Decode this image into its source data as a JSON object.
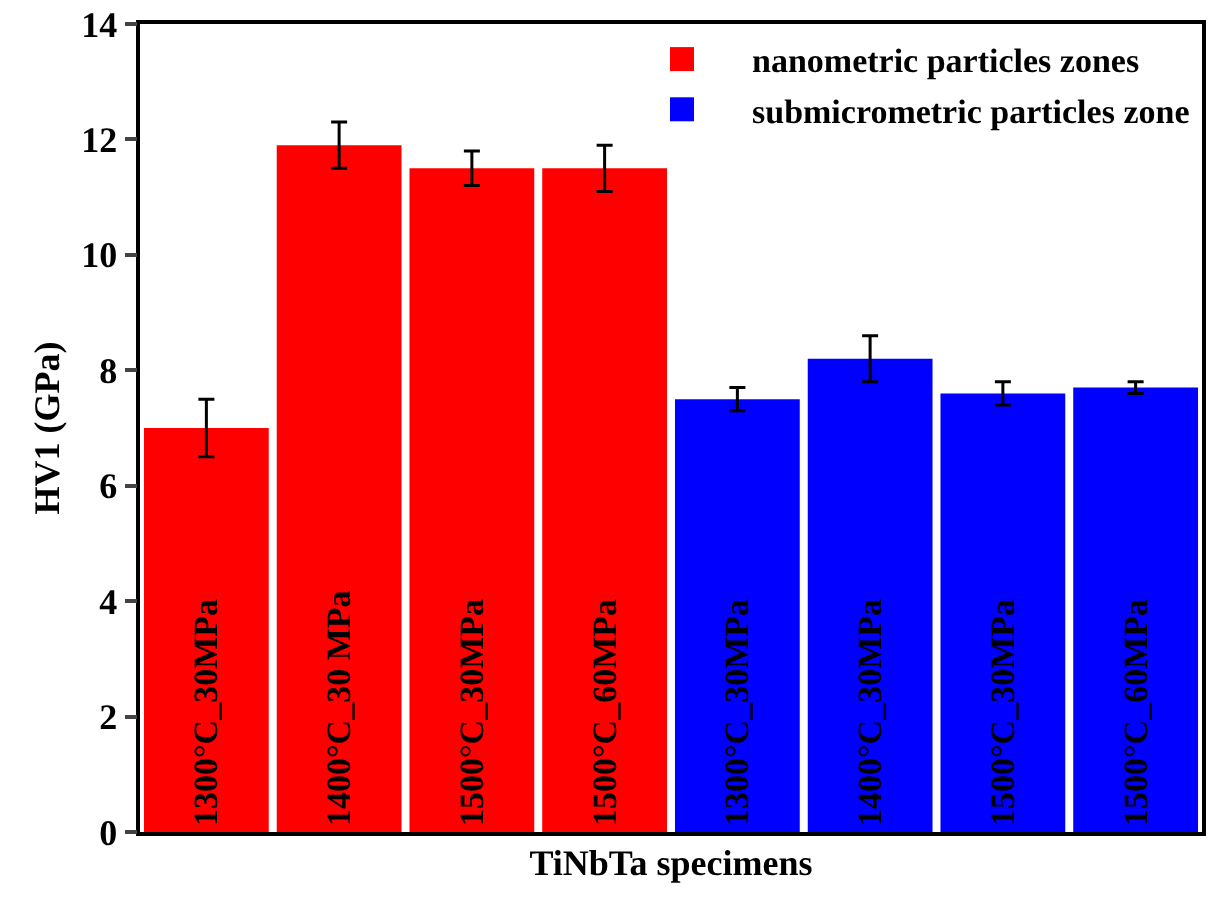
{
  "chart_data": {
    "type": "bar",
    "xlabel": "TiNbTa specimens",
    "ylabel": "HV1 (GPa)",
    "categories": [
      "1300°C_30MPa",
      "1400°C_30 MPa",
      "1500°C_30MPa",
      "1500°C_60MPa",
      "1300°C_30MPa",
      "1400°C_30MPa",
      "1500°C_30MPa",
      "1500°C_60MPa"
    ],
    "series": [
      {
        "name": "nanometric particles zones",
        "color": "#ff0000",
        "values": [
          7.0,
          11.9,
          11.5,
          11.5,
          null,
          null,
          null,
          null
        ],
        "errors": [
          0.5,
          0.4,
          0.3,
          0.4,
          null,
          null,
          null,
          null
        ]
      },
      {
        "name": "submicrometric particles zone",
        "color": "#0000ff",
        "values": [
          null,
          null,
          null,
          null,
          7.5,
          8.2,
          7.6,
          7.7
        ],
        "errors": [
          null,
          null,
          null,
          null,
          0.2,
          0.4,
          0.2,
          0.1
        ]
      }
    ],
    "ylim": [
      0,
      14
    ],
    "yticks": [
      0,
      2,
      4,
      6,
      8,
      10,
      12,
      14
    ],
    "legend": "top right",
    "tick_labels": "y",
    "grid": false
  }
}
